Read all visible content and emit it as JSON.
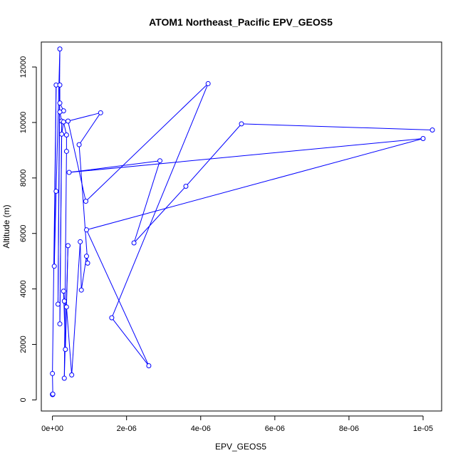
{
  "chart_data": {
    "type": "line",
    "title": "ATOM1 Northeast_Pacific EPV_GEOS5",
    "xlabel": "EPV_GEOS5",
    "ylabel": "Altitude (m)",
    "xlim": [
      -3e-07,
      1.05e-05
    ],
    "ylim": [
      -400,
      12900
    ],
    "x_ticks": [
      0,
      2e-06,
      4e-06,
      6e-06,
      8e-06,
      1e-05
    ],
    "x_tick_labels": [
      "0e+00",
      "2e-06",
      "4e-06",
      "6e-06",
      "8e-06",
      "1e-05"
    ],
    "y_ticks": [
      0,
      2000,
      4000,
      6000,
      8000,
      10000,
      12000
    ],
    "y_tick_labels": [
      "0",
      "2000",
      "4000",
      "6000",
      "8000",
      "10000",
      "12000"
    ],
    "series_color": "#0000ff",
    "series": [
      {
        "marker": "open-circle",
        "points": [
          [
            0.0,
            200
          ],
          [
            5e-09,
            190
          ],
          [
            1e-08,
            210
          ],
          [
            0.0,
            950
          ],
          [
            1e-07,
            11350
          ],
          [
            5e-08,
            4820
          ],
          [
            1e-07,
            7520
          ],
          [
            2e-07,
            12650
          ],
          [
            1.5e-07,
            3450
          ],
          [
            2e-07,
            11350
          ],
          [
            2e-07,
            10700
          ],
          [
            3e-07,
            10420
          ],
          [
            2e-07,
            10380
          ],
          [
            2.5e-07,
            10050
          ],
          [
            2e-07,
            2740
          ],
          [
            2.5e-07,
            9580
          ],
          [
            3e-07,
            10020
          ],
          [
            3.8e-07,
            9550
          ],
          [
            3.8e-07,
            8960
          ],
          [
            3.2e-07,
            780
          ],
          [
            4.2e-07,
            5560
          ],
          [
            3.5e-07,
            1820
          ],
          [
            3e-07,
            3920
          ],
          [
            3.2e-07,
            3560
          ],
          [
            3.8e-07,
            3350
          ],
          [
            5.2e-07,
            900
          ],
          [
            7.5e-07,
            5700
          ],
          [
            7.8e-07,
            3960
          ],
          [
            9.2e-07,
            5180
          ],
          [
            9.5e-07,
            4930
          ],
          [
            7.2e-07,
            9200
          ],
          [
            1.3e-06,
            10350
          ],
          [
            4.2e-07,
            10050
          ],
          [
            9e-07,
            7160
          ],
          [
            4.2e-06,
            11400
          ],
          [
            1.6e-06,
            2960
          ],
          [
            2.6e-06,
            1230
          ],
          [
            9.2e-07,
            6130
          ],
          [
            1e-05,
            9420
          ],
          [
            4.5e-07,
            8200
          ],
          [
            2.9e-06,
            8620
          ],
          [
            2.2e-06,
            5660
          ],
          [
            3.6e-06,
            7700
          ],
          [
            5.1e-06,
            9950
          ],
          [
            1.025e-05,
            9730
          ]
        ]
      }
    ]
  }
}
